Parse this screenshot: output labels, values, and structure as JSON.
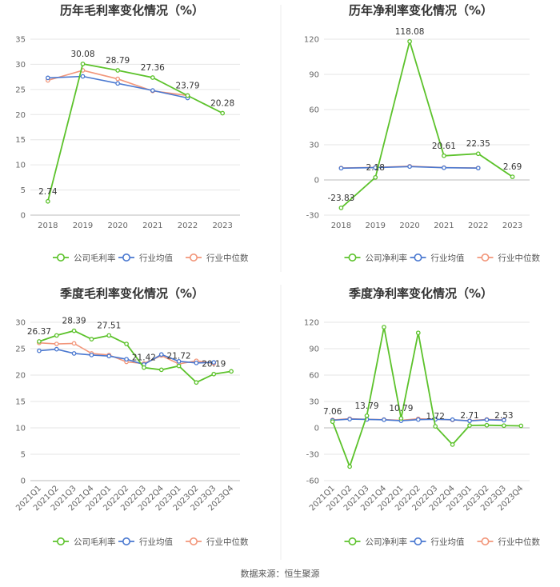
{
  "source": "数据来源：恒生聚源",
  "colors": {
    "company": "#5cc22b",
    "average": "#4a78d0",
    "median": "#f2967a",
    "grid": "#e6e6e6",
    "axis": "#bbbbbb"
  },
  "chart_data": [
    {
      "type": "line",
      "title": "历年毛利率变化情况（%）",
      "categories": [
        "2018",
        "2019",
        "2020",
        "2021",
        "2022",
        "2023"
      ],
      "ylim": [
        0,
        35
      ],
      "yticks": [
        0,
        5,
        10,
        15,
        20,
        25,
        30,
        35
      ],
      "rotate_x": false,
      "series": [
        {
          "name": "公司毛利率",
          "key": "company",
          "values": [
            2.74,
            30.08,
            28.79,
            27.36,
            23.79,
            20.28
          ]
        },
        {
          "name": "行业均值",
          "key": "average",
          "values": [
            27.3,
            27.6,
            26.2,
            24.8,
            23.3,
            null
          ]
        },
        {
          "name": "行业中位数",
          "key": "median",
          "values": [
            26.8,
            28.8,
            27.1,
            24.7,
            23.8,
            null
          ]
        }
      ],
      "labels": [
        {
          "i": 0,
          "text": "2.74",
          "pos": "above"
        },
        {
          "i": 1,
          "text": "30.08",
          "pos": "above"
        },
        {
          "i": 2,
          "text": "28.79",
          "pos": "above"
        },
        {
          "i": 3,
          "text": "27.36",
          "pos": "above"
        },
        {
          "i": 4,
          "text": "23.79",
          "pos": "above"
        },
        {
          "i": 5,
          "text": "20.28",
          "pos": "above"
        }
      ]
    },
    {
      "type": "line",
      "title": "历年净利率变化情况（%）",
      "categories": [
        "2018",
        "2019",
        "2020",
        "2021",
        "2022",
        "2023"
      ],
      "ylim": [
        -30,
        120
      ],
      "yticks": [
        -30,
        0,
        30,
        60,
        90,
        120
      ],
      "rotate_x": false,
      "series": [
        {
          "name": "公司净利率",
          "key": "company",
          "values": [
            -23.83,
            2.18,
            118.08,
            20.61,
            22.35,
            2.69
          ]
        },
        {
          "name": "行业均值",
          "key": "average",
          "values": [
            10.0,
            10.5,
            11.4,
            10.4,
            10.1,
            null
          ]
        },
        {
          "name": "行业中位数",
          "key": "median",
          "values": [
            10.2,
            10.7,
            11.7,
            10.5,
            10.2,
            null
          ]
        }
      ],
      "labels": [
        {
          "i": 0,
          "text": "-23.83",
          "pos": "above"
        },
        {
          "i": 1,
          "text": "2.18",
          "pos": "above"
        },
        {
          "i": 2,
          "text": "118.08",
          "pos": "above"
        },
        {
          "i": 3,
          "text": "20.61",
          "pos": "above"
        },
        {
          "i": 4,
          "text": "22.35",
          "pos": "above"
        },
        {
          "i": 5,
          "text": "2.69",
          "pos": "above"
        }
      ]
    },
    {
      "type": "line",
      "title": "季度毛利率变化情况（%）",
      "categories": [
        "2021Q1",
        "2021Q2",
        "2021Q3",
        "2021Q4",
        "2022Q1",
        "2022Q2",
        "2022Q3",
        "2022Q4",
        "2023Q1",
        "2023Q2",
        "2023Q3",
        "2023Q4"
      ],
      "ylim": [
        0,
        30
      ],
      "yticks": [
        0,
        5,
        10,
        15,
        20,
        25,
        30
      ],
      "rotate_x": true,
      "series": [
        {
          "name": "公司毛利率",
          "key": "company",
          "values": [
            26.37,
            27.51,
            28.39,
            26.8,
            27.51,
            25.9,
            21.42,
            21.0,
            21.72,
            18.6,
            20.19,
            20.7
          ]
        },
        {
          "name": "行业均值",
          "key": "average",
          "values": [
            24.6,
            24.9,
            24.1,
            23.8,
            23.6,
            23.0,
            22.0,
            23.9,
            22.6,
            22.3,
            22.4,
            null
          ]
        },
        {
          "name": "行业中位数",
          "key": "median",
          "values": [
            26.1,
            25.9,
            26.0,
            24.1,
            23.8,
            22.5,
            22.2,
            23.7,
            22.1,
            22.7,
            22.2,
            null
          ]
        }
      ],
      "labels": [
        {
          "i": 0,
          "text": "26.37",
          "pos": "above"
        },
        {
          "i": 2,
          "text": "28.39",
          "pos": "above"
        },
        {
          "i": 4,
          "text": "27.51",
          "pos": "above"
        },
        {
          "i": 6,
          "text": "21.42",
          "pos": "above"
        },
        {
          "i": 8,
          "text": "21.72",
          "pos": "above"
        },
        {
          "i": 10,
          "text": "20.19",
          "pos": "above"
        }
      ]
    },
    {
      "type": "line",
      "title": "季度净利率变化情况（%）",
      "categories": [
        "2021Q1",
        "2021Q2",
        "2021Q3",
        "2021Q4",
        "2022Q1",
        "2022Q2",
        "2022Q3",
        "2022Q4",
        "2023Q1",
        "2023Q2",
        "2023Q3",
        "2023Q4"
      ],
      "ylim": [
        -60,
        120
      ],
      "yticks": [
        -60,
        -30,
        0,
        30,
        60,
        90,
        120
      ],
      "rotate_x": true,
      "series": [
        {
          "name": "公司净利率",
          "key": "company",
          "values": [
            7.06,
            -44.0,
            13.79,
            114.5,
            10.79,
            108.0,
            1.72,
            -19.0,
            2.71,
            3.0,
            2.53,
            2.3
          ]
        },
        {
          "name": "行业均值",
          "key": "average",
          "values": [
            8.6,
            9.9,
            9.6,
            9.2,
            8.1,
            9.4,
            9.7,
            9.3,
            7.9,
            9.2,
            8.7,
            null
          ]
        },
        {
          "name": "行业中位数",
          "key": "median",
          "values": [
            9.1,
            10.4,
            9.7,
            9.4,
            8.6,
            10.3,
            9.8,
            9.0,
            8.2,
            9.6,
            9.1,
            null
          ]
        }
      ],
      "labels": [
        {
          "i": 0,
          "text": "7.06",
          "pos": "above"
        },
        {
          "i": 2,
          "text": "13.79",
          "pos": "above"
        },
        {
          "i": 4,
          "text": "10.79",
          "pos": "above"
        },
        {
          "i": 6,
          "text": "1.72",
          "pos": "above"
        },
        {
          "i": 8,
          "text": "2.71",
          "pos": "above"
        },
        {
          "i": 10,
          "text": "2.53",
          "pos": "above"
        }
      ]
    }
  ]
}
